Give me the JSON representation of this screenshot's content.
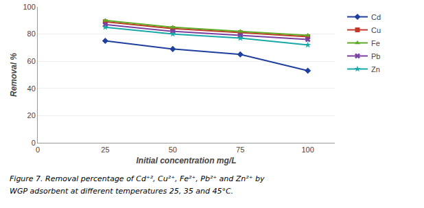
{
  "chart_data": {
    "type": "line",
    "x": [
      25,
      50,
      75,
      100
    ],
    "series": [
      {
        "name": "Cd",
        "color": "#1F3F9F",
        "marker": "diamond",
        "values": [
          75,
          69,
          65,
          53
        ]
      },
      {
        "name": "Cu",
        "color": "#C0392B",
        "marker": "square",
        "values": [
          89,
          84,
          81,
          78
        ]
      },
      {
        "name": "Fe",
        "color": "#5DAB24",
        "marker": "triangle-up",
        "values": [
          90,
          85,
          82,
          79
        ]
      },
      {
        "name": "Pb",
        "color": "#7B3FA0",
        "marker": "x",
        "values": [
          87,
          82,
          79,
          76
        ]
      },
      {
        "name": "Zn",
        "color": "#17A8A8",
        "marker": "star",
        "values": [
          85,
          80,
          77,
          72
        ]
      }
    ],
    "xlabel": "Initial concentration mg/L",
    "ylabel": "Removal %",
    "xlim": [
      0,
      110
    ],
    "ylim": [
      0,
      100
    ],
    "xticks": [
      0,
      25,
      50,
      75,
      100
    ],
    "yticks": [
      0,
      20,
      40,
      60,
      80,
      100
    ],
    "grid": "y",
    "legend": "right",
    "annotations": [
      "Figure 7. Removal percentage of Cd⁺², Cu²⁺, Fe²⁺, Pb²⁺ and Zn²⁺ by",
      "WGP adsorbent at different temperatures 25, 35 and 45°C."
    ]
  }
}
